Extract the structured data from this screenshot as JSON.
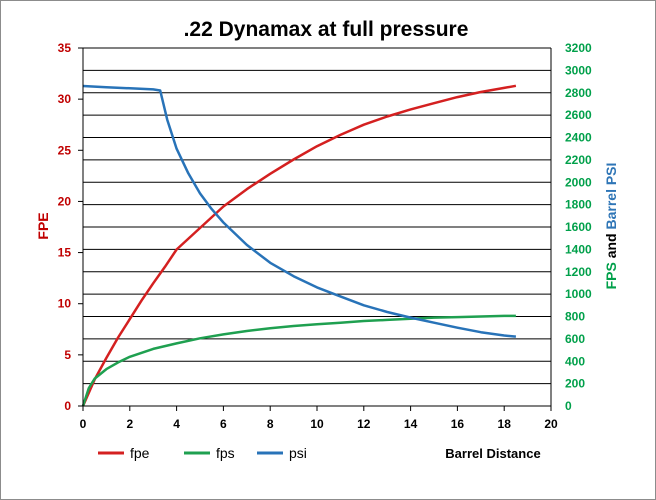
{
  "chart_data": {
    "type": "line",
    "title": ".22 Dynamax at full pressure",
    "xlabel": "Barrel Distance",
    "ylabel_left": "FPE",
    "ylabel_right_parts": [
      {
        "text": "FPS",
        "color": "#00a04a"
      },
      {
        "text": " and ",
        "color": "#000000"
      },
      {
        "text": "Barrel PSI",
        "color": "#2e75b6"
      }
    ],
    "xlim": [
      0,
      20
    ],
    "x_ticks": [
      0,
      2,
      4,
      6,
      8,
      10,
      12,
      14,
      16,
      18,
      20
    ],
    "y_left_lim": [
      0,
      35
    ],
    "y_left_ticks": [
      0,
      5,
      10,
      15,
      20,
      25,
      30,
      35
    ],
    "y_right_lim": [
      0,
      3200
    ],
    "y_right_ticks": [
      0,
      200,
      400,
      600,
      800,
      1000,
      1200,
      1400,
      1600,
      1800,
      2000,
      2200,
      2400,
      2600,
      2800,
      3000,
      3200
    ],
    "grid": "horizontal",
    "legend_position": "bottom-left",
    "series": [
      {
        "name": "fpe",
        "axis": "left",
        "color": "#d42020",
        "x": [
          0,
          0.5,
          1,
          1.5,
          2,
          2.5,
          3,
          3.5,
          4,
          5,
          6,
          7,
          8,
          9,
          10,
          11,
          12,
          13,
          14,
          15,
          16,
          17,
          18,
          18.5
        ],
        "y": [
          0,
          2.6,
          4.7,
          6.7,
          8.5,
          10.3,
          12.0,
          13.6,
          15.3,
          17.4,
          19.5,
          21.2,
          22.7,
          24.1,
          25.4,
          26.5,
          27.5,
          28.3,
          29.0,
          29.6,
          30.2,
          30.7,
          31.1,
          31.3
        ]
      },
      {
        "name": "fps",
        "axis": "right",
        "color": "#1fa050",
        "x": [
          0,
          0.25,
          0.5,
          1,
          1.5,
          2,
          3,
          4,
          5,
          6,
          7,
          8,
          9,
          10,
          11,
          12,
          13,
          14,
          15,
          16,
          17,
          18,
          18.5
        ],
        "y": [
          0,
          160,
          245,
          330,
          390,
          440,
          510,
          560,
          605,
          640,
          670,
          695,
          715,
          730,
          745,
          760,
          770,
          780,
          790,
          795,
          800,
          805,
          805
        ]
      },
      {
        "name": "psi",
        "axis": "right",
        "color": "#2873b8",
        "x": [
          0,
          1,
          2,
          3,
          3.3,
          3.6,
          4,
          4.5,
          5,
          5.5,
          6,
          7,
          8,
          9,
          10,
          11,
          12,
          13,
          14,
          15,
          16,
          17,
          18,
          18.5
        ],
        "y": [
          2860,
          2850,
          2840,
          2830,
          2820,
          2560,
          2300,
          2080,
          1900,
          1760,
          1640,
          1440,
          1280,
          1160,
          1060,
          980,
          900,
          840,
          790,
          745,
          700,
          660,
          630,
          620
        ]
      }
    ]
  }
}
